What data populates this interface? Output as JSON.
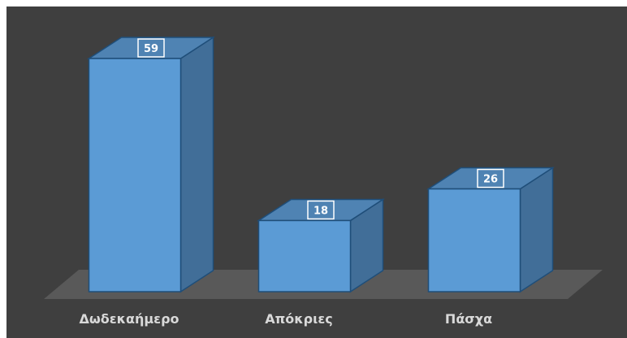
{
  "chart_data": {
    "type": "bar",
    "style": "3d-column",
    "categories": [
      "Δωδεκαήμερο",
      "Απόκριες",
      "Πάσχα"
    ],
    "values": [
      59,
      18,
      26
    ],
    "ylim": [
      0,
      59
    ],
    "grid": false,
    "data_labels": true,
    "colors": {
      "background": "#3f3f3f",
      "floor": "#595959",
      "bar_front": "#5b9bd5",
      "bar_top": "#4f83b3",
      "bar_side": "#416e98",
      "bar_edge": "#1f4e79",
      "label_text": "#d9d9d9",
      "value_text": "#ffffff"
    }
  }
}
